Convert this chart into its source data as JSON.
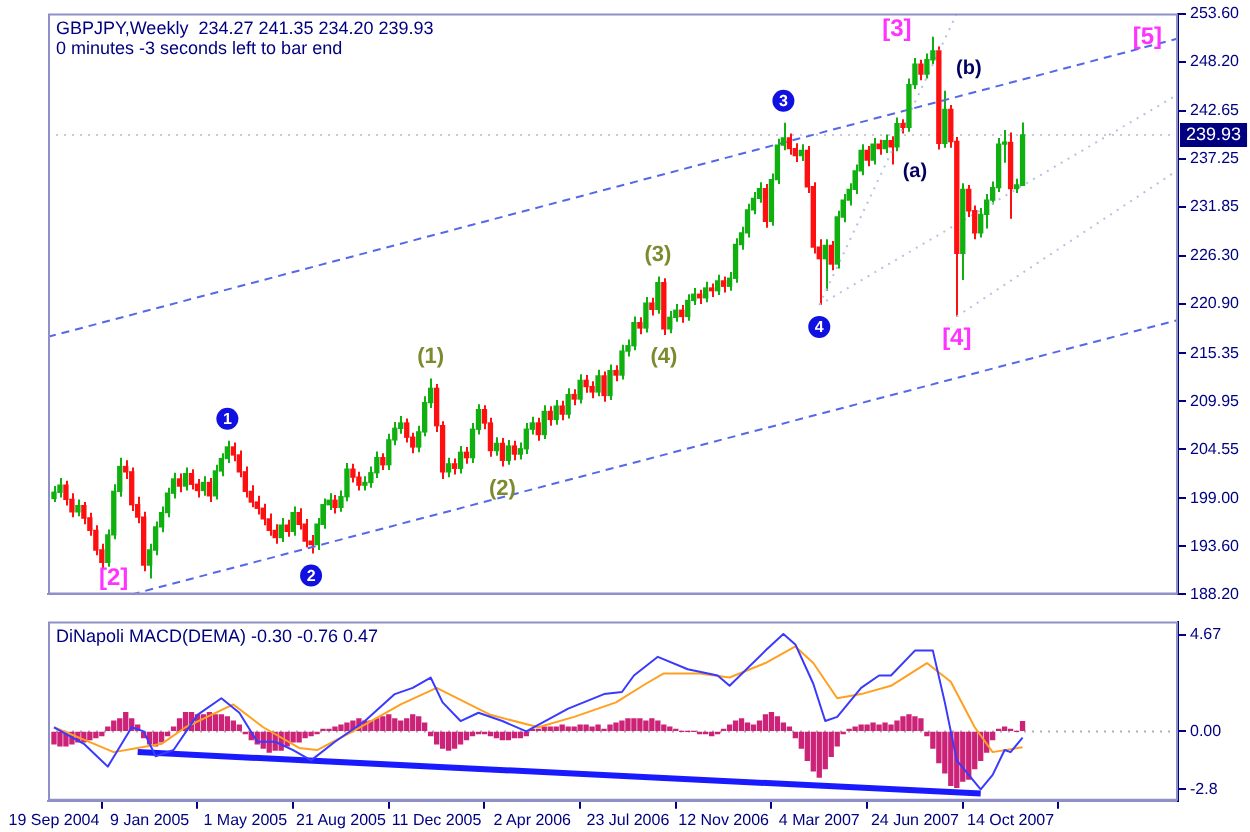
{
  "chart_data": [
    {
      "type": "candlestick",
      "title": "GBPJPY,Weekly  234.27 241.35 234.20 239.93",
      "subtitle": "0 minutes -3 seconds left to bar end",
      "x": [
        "2004-09-19",
        "2004-09-26",
        "2004-10-03",
        "2004-10-10",
        "2004-10-17",
        "2004-10-24",
        "2004-10-31",
        "2004-11-07",
        "2004-11-14",
        "2004-11-21",
        "2004-11-28",
        "2004-12-05",
        "2004-12-12",
        "2004-12-19",
        "2004-12-26",
        "2005-01-02",
        "2005-01-09",
        "2005-01-16",
        "2005-01-23",
        "2005-01-30",
        "2005-02-06",
        "2005-02-13",
        "2005-02-20",
        "2005-02-27",
        "2005-03-06",
        "2005-03-13",
        "2005-03-20",
        "2005-03-27",
        "2005-04-03",
        "2005-04-10",
        "2005-04-17",
        "2005-04-24",
        "2005-05-01",
        "2005-05-08",
        "2005-05-15",
        "2005-05-22",
        "2005-05-29",
        "2005-06-05",
        "2005-06-12",
        "2005-06-19",
        "2005-06-26",
        "2005-07-03",
        "2005-07-10",
        "2005-07-17",
        "2005-07-24",
        "2005-07-31",
        "2005-08-07",
        "2005-08-14",
        "2005-08-21",
        "2005-08-28",
        "2005-09-04",
        "2005-09-11",
        "2005-09-18",
        "2005-09-25",
        "2005-10-02",
        "2005-10-09",
        "2005-10-16",
        "2005-10-23",
        "2005-10-30",
        "2005-11-06",
        "2005-11-13",
        "2005-11-20",
        "2005-11-27",
        "2005-12-04",
        "2005-12-11",
        "2005-12-18",
        "2005-12-25",
        "2006-01-01",
        "2006-01-08",
        "2006-01-15",
        "2006-01-22",
        "2006-01-29",
        "2006-02-05",
        "2006-02-12",
        "2006-02-19",
        "2006-02-26",
        "2006-03-05",
        "2006-03-12",
        "2006-03-19",
        "2006-03-26",
        "2006-04-02",
        "2006-04-09",
        "2006-04-16",
        "2006-04-23",
        "2006-04-30",
        "2006-05-07",
        "2006-05-14",
        "2006-05-21",
        "2006-05-28",
        "2006-06-04",
        "2006-06-11",
        "2006-06-18",
        "2006-06-25",
        "2006-07-02",
        "2006-07-09",
        "2006-07-16",
        "2006-07-23",
        "2006-07-30",
        "2006-08-06",
        "2006-08-13",
        "2006-08-20",
        "2006-08-27",
        "2006-09-03",
        "2006-09-10",
        "2006-09-17",
        "2006-09-24",
        "2006-10-01",
        "2006-10-08",
        "2006-10-15",
        "2006-10-22",
        "2006-10-29",
        "2006-11-05",
        "2006-11-12",
        "2006-11-19",
        "2006-11-26",
        "2006-12-03",
        "2006-12-10",
        "2006-12-17",
        "2006-12-24",
        "2006-12-31",
        "2007-01-07",
        "2007-01-14",
        "2007-01-21",
        "2007-01-28",
        "2007-02-04",
        "2007-02-11",
        "2007-02-18",
        "2007-02-25",
        "2007-03-04",
        "2007-03-11",
        "2007-03-18",
        "2007-03-25",
        "2007-04-01",
        "2007-04-08",
        "2007-04-15",
        "2007-04-22",
        "2007-04-29",
        "2007-05-06",
        "2007-05-13",
        "2007-05-20",
        "2007-05-27",
        "2007-06-03",
        "2007-06-10",
        "2007-06-17",
        "2007-06-24",
        "2007-07-01",
        "2007-07-08",
        "2007-07-15",
        "2007-07-22",
        "2007-07-29",
        "2007-08-05",
        "2007-08-12",
        "2007-08-19",
        "2007-08-26",
        "2007-09-02",
        "2007-09-09",
        "2007-09-16",
        "2007-09-23",
        "2007-09-30",
        "2007-10-07",
        "2007-10-14",
        "2007-10-21",
        "2007-10-28"
      ],
      "ohlc": [
        [
          199.0,
          200.4,
          198.6,
          199.7
        ],
        [
          199.7,
          201.3,
          199.1,
          200.5
        ],
        [
          200.5,
          201.0,
          198.2,
          198.9
        ],
        [
          198.9,
          199.6,
          196.9,
          197.5
        ],
        [
          197.5,
          198.9,
          197.0,
          198.2
        ],
        [
          198.2,
          198.6,
          196.1,
          196.8
        ],
        [
          196.8,
          197.4,
          194.8,
          195.4
        ],
        [
          195.4,
          196.0,
          192.6,
          193.2
        ],
        [
          193.2,
          193.9,
          191.1,
          191.8
        ],
        [
          191.8,
          195.5,
          191.3,
          194.9
        ],
        [
          194.9,
          200.6,
          194.4,
          199.8
        ],
        [
          199.8,
          203.6,
          199.2,
          202.6
        ],
        [
          202.6,
          203.3,
          201.2,
          202.0
        ],
        [
          202.0,
          202.5,
          197.6,
          198.3
        ],
        [
          198.3,
          199.2,
          196.2,
          196.9
        ],
        [
          196.9,
          197.5,
          190.8,
          191.5
        ],
        [
          191.5,
          193.9,
          190.0,
          193.2
        ],
        [
          193.2,
          196.4,
          192.6,
          195.8
        ],
        [
          195.8,
          198.1,
          195.2,
          197.4
        ],
        [
          197.4,
          200.2,
          196.9,
          199.6
        ],
        [
          199.6,
          201.9,
          199.0,
          201.2
        ],
        [
          201.2,
          201.8,
          199.7,
          200.4
        ],
        [
          200.4,
          202.5,
          199.9,
          201.8
        ],
        [
          201.8,
          202.3,
          200.0,
          200.6
        ],
        [
          200.6,
          201.2,
          199.1,
          199.9
        ],
        [
          199.9,
          201.5,
          199.3,
          200.8
        ],
        [
          200.8,
          201.3,
          198.6,
          199.3
        ],
        [
          199.3,
          202.8,
          198.9,
          202.1
        ],
        [
          202.1,
          204.1,
          201.5,
          203.5
        ],
        [
          203.5,
          205.5,
          203.0,
          204.8
        ],
        [
          204.8,
          205.3,
          203.2,
          203.9
        ],
        [
          203.9,
          204.4,
          201.4,
          202.0
        ],
        [
          202.0,
          202.6,
          199.1,
          199.8
        ],
        [
          199.8,
          200.5,
          198.0,
          198.6
        ],
        [
          198.6,
          199.3,
          197.2,
          197.9
        ],
        [
          197.9,
          198.4,
          196.0,
          196.7
        ],
        [
          196.7,
          197.3,
          194.8,
          195.4
        ],
        [
          195.4,
          196.1,
          193.9,
          194.6
        ],
        [
          194.6,
          196.8,
          194.1,
          196.0
        ],
        [
          196.0,
          196.6,
          194.7,
          195.3
        ],
        [
          195.3,
          198.1,
          194.8,
          197.4
        ],
        [
          197.4,
          197.9,
          195.5,
          196.1
        ],
        [
          196.1,
          196.7,
          193.5,
          194.2
        ],
        [
          194.2,
          194.9,
          192.8,
          193.8
        ],
        [
          193.8,
          196.8,
          193.2,
          196.1
        ],
        [
          196.1,
          199.0,
          195.6,
          198.3
        ],
        [
          198.3,
          199.6,
          197.7,
          198.8
        ],
        [
          198.8,
          199.4,
          197.3,
          198.0
        ],
        [
          198.0,
          199.9,
          197.5,
          199.2
        ],
        [
          199.2,
          203.0,
          198.7,
          202.3
        ],
        [
          202.3,
          202.9,
          200.8,
          201.4
        ],
        [
          201.4,
          202.0,
          199.9,
          200.5
        ],
        [
          200.5,
          201.5,
          199.9,
          200.8
        ],
        [
          200.8,
          202.6,
          200.2,
          201.9
        ],
        [
          201.9,
          204.3,
          201.3,
          203.6
        ],
        [
          203.6,
          204.1,
          202.2,
          202.8
        ],
        [
          202.8,
          206.3,
          202.2,
          205.6
        ],
        [
          205.6,
          207.6,
          205.0,
          206.9
        ],
        [
          206.9,
          208.3,
          206.3,
          207.5
        ],
        [
          207.5,
          208.0,
          205.3,
          205.9
        ],
        [
          205.9,
          206.4,
          204.1,
          204.8
        ],
        [
          204.8,
          207.2,
          204.2,
          206.5
        ],
        [
          206.5,
          210.5,
          206.0,
          209.8
        ],
        [
          209.8,
          212.5,
          209.2,
          211.4
        ],
        [
          211.4,
          211.9,
          206.5,
          207.2
        ],
        [
          207.2,
          207.7,
          201.2,
          202.0
        ],
        [
          202.0,
          203.6,
          201.4,
          202.9
        ],
        [
          202.9,
          203.5,
          201.7,
          202.4
        ],
        [
          202.4,
          204.9,
          201.8,
          204.2
        ],
        [
          204.2,
          204.8,
          202.9,
          203.6
        ],
        [
          203.6,
          207.5,
          203.0,
          206.8
        ],
        [
          206.8,
          209.6,
          206.2,
          209.0
        ],
        [
          209.0,
          209.5,
          206.8,
          207.5
        ],
        [
          207.5,
          208.1,
          203.7,
          204.4
        ],
        [
          204.4,
          205.9,
          203.8,
          205.2
        ],
        [
          205.2,
          205.8,
          202.6,
          203.3
        ],
        [
          203.3,
          205.6,
          202.8,
          204.9
        ],
        [
          204.9,
          205.5,
          203.3,
          204.0
        ],
        [
          204.0,
          205.3,
          203.4,
          204.6
        ],
        [
          204.6,
          207.5,
          204.0,
          206.8
        ],
        [
          206.8,
          208.2,
          206.2,
          207.5
        ],
        [
          207.5,
          208.1,
          205.5,
          206.2
        ],
        [
          206.2,
          209.5,
          205.7,
          208.8
        ],
        [
          208.8,
          209.4,
          207.2,
          207.9
        ],
        [
          207.9,
          210.1,
          207.3,
          209.4
        ],
        [
          209.4,
          210.0,
          207.8,
          208.5
        ],
        [
          208.5,
          211.4,
          208.0,
          210.7
        ],
        [
          210.7,
          211.3,
          209.5,
          210.2
        ],
        [
          210.2,
          213.0,
          209.7,
          212.3
        ],
        [
          212.3,
          212.9,
          210.9,
          211.6
        ],
        [
          211.6,
          212.2,
          210.3,
          211.0
        ],
        [
          211.0,
          213.5,
          210.5,
          212.8
        ],
        [
          212.8,
          213.3,
          209.9,
          210.6
        ],
        [
          210.6,
          214.1,
          210.1,
          213.4
        ],
        [
          213.4,
          214.0,
          212.2,
          212.9
        ],
        [
          212.9,
          216.3,
          212.4,
          215.6
        ],
        [
          215.6,
          216.9,
          215.0,
          216.2
        ],
        [
          216.2,
          219.5,
          215.7,
          218.8
        ],
        [
          218.8,
          219.4,
          217.5,
          218.2
        ],
        [
          218.2,
          221.7,
          217.7,
          221.0
        ],
        [
          221.0,
          221.6,
          219.6,
          220.3
        ],
        [
          220.3,
          224.0,
          219.8,
          223.3
        ],
        [
          223.3,
          223.8,
          217.4,
          218.1
        ],
        [
          218.1,
          220.1,
          217.6,
          219.4
        ],
        [
          219.4,
          220.9,
          218.9,
          220.2
        ],
        [
          220.2,
          220.8,
          218.8,
          219.5
        ],
        [
          219.5,
          222.0,
          219.0,
          221.3
        ],
        [
          221.3,
          222.7,
          220.8,
          222.0
        ],
        [
          222.0,
          222.5,
          220.9,
          221.6
        ],
        [
          221.6,
          223.4,
          221.1,
          222.7
        ],
        [
          222.7,
          223.2,
          221.7,
          222.4
        ],
        [
          222.4,
          224.2,
          221.9,
          223.5
        ],
        [
          223.5,
          224.0,
          222.2,
          222.9
        ],
        [
          222.9,
          224.5,
          222.4,
          223.8
        ],
        [
          223.8,
          228.3,
          223.3,
          227.6
        ],
        [
          227.6,
          229.6,
          227.0,
          228.9
        ],
        [
          228.9,
          232.2,
          228.4,
          231.5
        ],
        [
          231.5,
          233.5,
          231.0,
          232.8
        ],
        [
          232.8,
          234.6,
          232.3,
          233.9
        ],
        [
          233.9,
          234.4,
          229.5,
          230.2
        ],
        [
          230.2,
          235.6,
          229.7,
          234.9
        ],
        [
          234.9,
          239.5,
          234.4,
          238.8
        ],
        [
          238.8,
          241.3,
          238.2,
          239.6
        ],
        [
          239.6,
          240.1,
          237.7,
          238.4
        ],
        [
          238.4,
          239.0,
          236.9,
          237.6
        ],
        [
          237.6,
          238.9,
          237.0,
          238.2
        ],
        [
          238.2,
          238.7,
          233.4,
          234.1
        ],
        [
          234.1,
          234.6,
          226.6,
          227.3
        ],
        [
          227.3,
          228.2,
          220.8,
          226.0
        ],
        [
          226.0,
          228.2,
          222.4,
          227.5
        ],
        [
          227.5,
          228.0,
          224.7,
          225.4
        ],
        [
          225.4,
          231.4,
          224.9,
          230.7
        ],
        [
          230.7,
          233.3,
          230.1,
          232.6
        ],
        [
          232.6,
          234.5,
          232.0,
          233.8
        ],
        [
          233.8,
          236.6,
          233.3,
          235.9
        ],
        [
          235.9,
          238.9,
          235.4,
          238.2
        ],
        [
          238.2,
          238.7,
          236.4,
          237.1
        ],
        [
          237.1,
          239.6,
          236.6,
          238.9
        ],
        [
          238.9,
          239.4,
          237.7,
          238.4
        ],
        [
          238.4,
          240.0,
          237.9,
          239.3
        ],
        [
          239.3,
          239.8,
          236.6,
          238.6
        ],
        [
          238.6,
          241.9,
          238.1,
          241.2
        ],
        [
          241.2,
          241.7,
          240.1,
          240.8
        ],
        [
          240.8,
          246.3,
          240.3,
          245.6
        ],
        [
          245.6,
          248.6,
          245.1,
          247.9
        ],
        [
          247.9,
          248.4,
          246.1,
          246.8
        ],
        [
          246.8,
          249.1,
          246.3,
          248.4
        ],
        [
          248.4,
          251.0,
          247.9,
          249.4
        ],
        [
          249.4,
          249.9,
          238.3,
          239.0
        ],
        [
          239.0,
          244.9,
          238.5,
          242.8
        ],
        [
          242.8,
          243.3,
          238.5,
          239.2
        ],
        [
          239.2,
          239.7,
          219.5,
          226.6
        ],
        [
          226.6,
          234.5,
          223.6,
          233.8
        ],
        [
          233.8,
          234.3,
          230.7,
          231.4
        ],
        [
          231.4,
          232.0,
          228.2,
          228.9
        ],
        [
          228.9,
          231.7,
          228.4,
          231.0
        ],
        [
          231.0,
          233.3,
          229.4,
          232.6
        ],
        [
          232.6,
          234.7,
          232.1,
          234.0
        ],
        [
          234.0,
          239.6,
          233.5,
          238.9
        ],
        [
          238.9,
          240.5,
          236.8,
          239.1
        ],
        [
          239.1,
          240.2,
          230.5,
          233.9
        ],
        [
          233.9,
          235.0,
          233.4,
          234.3
        ],
        [
          234.27,
          241.35,
          234.2,
          239.93
        ]
      ],
      "series": [
        {
          "type": "line",
          "color": "#5468e8",
          "line_style": "dashed",
          "x": [
            "2004-09-12",
            "2008-04-27"
          ],
          "values": [
            217.2,
            250.8
          ]
        },
        {
          "type": "line",
          "color": "#5468e8",
          "line_style": "dashed",
          "x": [
            "2004-12-19",
            "2008-04-27"
          ],
          "values": [
            188.2,
            219.1
          ]
        },
        {
          "type": "line",
          "color": "#b8c0e0",
          "line_style": "dotted",
          "x": [
            "2007-03-04",
            "2008-04-27"
          ],
          "values": [
            220.8,
            244.5
          ]
        },
        {
          "type": "line",
          "color": "#b8c0e0",
          "line_style": "dotted",
          "x": [
            "2007-08-12",
            "2008-04-27"
          ],
          "values": [
            219.5,
            236.0
          ]
        },
        {
          "type": "line",
          "color": "#b8c0e0",
          "line_style": "dotted",
          "x": [
            "2007-03-04",
            "2007-08-12"
          ],
          "values": [
            220.8,
            253.6
          ]
        }
      ],
      "xlim": [
        "2004-09-12",
        "2008-04-27"
      ],
      "ylim": [
        188.2,
        253.6
      ],
      "yticks": [
        {
          "value": 253.6,
          "label": "253.60"
        },
        {
          "value": 248.2,
          "label": "248.20"
        },
        {
          "value": 242.65,
          "label": "242.65"
        },
        {
          "value": 237.25,
          "label": "237.25"
        },
        {
          "value": 231.85,
          "label": "231.85"
        },
        {
          "value": 226.3,
          "label": "226.30"
        },
        {
          "value": 220.9,
          "label": "220.90"
        },
        {
          "value": 215.35,
          "label": "215.35"
        },
        {
          "value": 209.95,
          "label": "209.95"
        },
        {
          "value": 204.55,
          "label": "204.55"
        },
        {
          "value": 199.0,
          "label": "199.00"
        },
        {
          "value": 193.6,
          "label": "193.60"
        },
        {
          "value": 188.2,
          "label": "188.20"
        }
      ],
      "ref_lines": [
        {
          "axis": "y",
          "value": 239.93,
          "label": "239.93",
          "color": "#c8c8d8",
          "line_style": "dotted"
        }
      ],
      "annotations": [
        {
          "text": "1",
          "x": "2005-04-10",
          "y": 205.5
        },
        {
          "text": "2",
          "x": "2005-07-17",
          "y": 192.8
        },
        {
          "text": "3",
          "x": "2007-01-21",
          "y": 241.3
        },
        {
          "text": "4",
          "x": "2007-03-04",
          "y": 220.8
        },
        {
          "text": "(1)",
          "x": "2005-12-04",
          "y": 212.5
        },
        {
          "text": "(2)",
          "x": "2006-02-26",
          "y": 202.6
        },
        {
          "text": "(3)",
          "x": "2006-08-27",
          "y": 224.0
        },
        {
          "text": "(4)",
          "x": "2006-09-03",
          "y": 217.4
        },
        {
          "text": "[2]",
          "x": "2005-01-09",
          "y": 190.0
        },
        {
          "text": "[3]",
          "x": "2007-07-15",
          "y": 251.0
        },
        {
          "text": "[4]",
          "x": "2007-08-12",
          "y": 219.5
        },
        {
          "text": "(a)",
          "x": "2007-07-22",
          "y": 238.3
        },
        {
          "text": "(b)",
          "x": "2007-07-29",
          "y": 244.9
        },
        "[5]"
      ],
      "tick_labels": "y"
    },
    {
      "type": "bar",
      "title": "DiNapoli MACD(DEMA) -0.30 -0.76 0.47",
      "x": [
        "2004-09-19",
        "2004-09-26",
        "2004-10-03",
        "2004-10-10",
        "2004-10-17",
        "2004-10-24",
        "2004-10-31",
        "2004-11-07",
        "2004-11-14",
        "2004-11-21",
        "2004-11-28",
        "2004-12-05",
        "2004-12-12",
        "2004-12-19",
        "2004-12-26",
        "2005-01-02",
        "2005-01-09",
        "2005-01-16",
        "2005-01-23",
        "2005-01-30",
        "2005-02-06",
        "2005-02-13",
        "2005-02-20",
        "2005-02-27",
        "2005-03-06",
        "2005-03-13",
        "2005-03-20",
        "2005-03-27",
        "2005-04-03",
        "2005-04-10",
        "2005-04-17",
        "2005-04-24",
        "2005-05-01",
        "2005-05-08",
        "2005-05-15",
        "2005-05-22",
        "2005-05-29",
        "2005-06-05",
        "2005-06-12",
        "2005-06-19",
        "2005-06-26",
        "2005-07-03",
        "2005-07-10",
        "2005-07-17",
        "2005-07-24",
        "2005-07-31",
        "2005-08-07",
        "2005-08-14",
        "2005-08-21",
        "2005-08-28",
        "2005-09-04",
        "2005-09-11",
        "2005-09-18",
        "2005-09-25",
        "2005-10-02",
        "2005-10-09",
        "2005-10-16",
        "2005-10-23",
        "2005-10-30",
        "2005-11-06",
        "2005-11-13",
        "2005-11-20",
        "2005-11-27",
        "2005-12-04",
        "2005-12-11",
        "2005-12-18",
        "2005-12-25",
        "2006-01-01",
        "2006-01-08",
        "2006-01-15",
        "2006-01-22",
        "2006-01-29",
        "2006-02-05",
        "2006-02-12",
        "2006-02-19",
        "2006-02-26",
        "2006-03-05",
        "2006-03-12",
        "2006-03-19",
        "2006-03-26",
        "2006-04-02",
        "2006-04-09",
        "2006-04-16",
        "2006-04-23",
        "2006-04-30",
        "2006-05-07",
        "2006-05-14",
        "2006-05-21",
        "2006-05-28",
        "2006-06-04",
        "2006-06-11",
        "2006-06-18",
        "2006-06-25",
        "2006-07-02",
        "2006-07-09",
        "2006-07-16",
        "2006-07-23",
        "2006-07-30",
        "2006-08-06",
        "2006-08-13",
        "2006-08-20",
        "2006-08-27",
        "2006-09-03",
        "2006-09-10",
        "2006-09-17",
        "2006-09-24",
        "2006-10-01",
        "2006-10-08",
        "2006-10-15",
        "2006-10-22",
        "2006-10-29",
        "2006-11-05",
        "2006-11-12",
        "2006-11-19",
        "2006-11-26",
        "2006-12-03",
        "2006-12-10",
        "2006-12-17",
        "2006-12-24",
        "2006-12-31",
        "2007-01-07",
        "2007-01-14",
        "2007-01-21",
        "2007-01-28",
        "2007-02-04",
        "2007-02-11",
        "2007-02-18",
        "2007-02-25",
        "2007-03-04",
        "2007-03-11",
        "2007-03-18",
        "2007-03-25",
        "2007-04-01",
        "2007-04-08",
        "2007-04-15",
        "2007-04-22",
        "2007-04-29",
        "2007-05-06",
        "2007-05-13",
        "2007-05-20",
        "2007-05-27",
        "2007-06-03",
        "2007-06-10",
        "2007-06-17",
        "2007-06-24",
        "2007-07-01",
        "2007-07-08",
        "2007-07-15",
        "2007-07-22",
        "2007-07-29",
        "2007-08-05",
        "2007-08-12",
        "2007-08-19",
        "2007-08-26",
        "2007-09-02",
        "2007-09-09",
        "2007-09-16",
        "2007-09-23",
        "2007-09-30",
        "2007-10-07",
        "2007-10-14",
        "2007-10-21",
        "2007-10-28"
      ],
      "series": [
        {
          "type": "bar",
          "color": "#cc2277",
          "values": [
            -0.6,
            -0.7,
            -0.7,
            -0.6,
            -0.5,
            -0.5,
            -0.4,
            -0.3,
            -0.2,
            0.2,
            0.5,
            0.6,
            0.9,
            0.6,
            0.3,
            -0.3,
            -0.6,
            -0.7,
            -0.5,
            -0.2,
            0.2,
            0.6,
            0.9,
            0.9,
            0.8,
            0.8,
            0.9,
            0.8,
            0.8,
            0.7,
            0.5,
            0.3,
            -0.1,
            -0.4,
            -0.6,
            -0.8,
            -1.0,
            -0.9,
            -0.9,
            -0.7,
            -0.5,
            -0.5,
            -0.3,
            -0.2,
            -0.1,
            0.1,
            0.1,
            0.2,
            0.3,
            0.4,
            0.5,
            0.6,
            0.5,
            0.5,
            0.6,
            0.7,
            0.8,
            0.6,
            0.5,
            0.6,
            0.8,
            0.7,
            0.4,
            -0.2,
            -0.6,
            -0.8,
            -0.9,
            -0.8,
            -0.6,
            -0.4,
            -0.2,
            -0.1,
            -0.1,
            -0.2,
            -0.3,
            -0.4,
            -0.4,
            -0.3,
            -0.3,
            -0.2,
            0.1,
            0.1,
            0.2,
            0.2,
            0.2,
            0.3,
            0.2,
            0.2,
            0.3,
            0.3,
            0.2,
            0.3,
            0.1,
            0.3,
            0.4,
            0.5,
            0.6,
            0.6,
            0.6,
            0.5,
            0.6,
            0.5,
            0.3,
            0.2,
            0.1,
            0.0,
            0.0,
            0.0,
            -0.1,
            -0.1,
            -0.2,
            -0.1,
            0.1,
            0.3,
            0.5,
            0.6,
            0.4,
            0.3,
            0.5,
            0.8,
            0.9,
            0.7,
            0.4,
            0.2,
            -0.3,
            -0.8,
            -1.4,
            -1.9,
            -2.2,
            -1.8,
            -1.2,
            -0.7,
            -0.1,
            0.1,
            0.2,
            0.3,
            0.3,
            0.4,
            0.3,
            0.4,
            0.3,
            0.5,
            0.7,
            0.8,
            0.7,
            0.6,
            -0.2,
            -0.8,
            -1.5,
            -2.0,
            -2.6,
            -2.7,
            -2.4,
            -2.3,
            -1.8,
            -1.4,
            -1.0,
            -0.4,
            0.1,
            0.2,
            0.1,
            0.0,
            0.47
          ]
        },
        {
          "type": "line",
          "color": "#3a3aff",
          "x": [
            "2004-09-19",
            "2004-10-24",
            "2004-11-21",
            "2004-12-19",
            "2005-01-02",
            "2005-01-16",
            "2005-02-06",
            "2005-03-06",
            "2005-04-03",
            "2005-04-24",
            "2005-05-15",
            "2005-06-05",
            "2005-06-26",
            "2005-07-17",
            "2005-08-14",
            "2005-09-18",
            "2005-10-23",
            "2005-11-13",
            "2005-12-04",
            "2005-12-18",
            "2006-01-08",
            "2006-01-29",
            "2006-02-26",
            "2006-03-26",
            "2006-05-14",
            "2006-06-25",
            "2006-07-16",
            "2006-07-30",
            "2006-08-27",
            "2006-10-01",
            "2006-11-05",
            "2006-11-19",
            "2006-12-31",
            "2007-01-21",
            "2007-02-04",
            "2007-02-25",
            "2007-03-11",
            "2007-03-25",
            "2007-04-22",
            "2007-05-13",
            "2007-05-27",
            "2007-06-24",
            "2007-07-15",
            "2007-07-29",
            "2007-08-12",
            "2007-09-09",
            "2007-09-23",
            "2007-10-07",
            "2007-10-14",
            "2007-10-28"
          ],
          "values": [
            0.2,
            -0.6,
            -1.7,
            0.2,
            0.0,
            -1.2,
            -0.9,
            0.8,
            1.6,
            0.9,
            -0.5,
            -0.5,
            -0.9,
            -1.4,
            -0.5,
            0.5,
            1.8,
            2.1,
            2.6,
            1.4,
            0.5,
            0.9,
            0.5,
            0.0,
            1.1,
            1.8,
            1.9,
            2.7,
            3.6,
            3.0,
            2.7,
            2.2,
            3.9,
            4.7,
            4.2,
            2.3,
            0.5,
            0.7,
            2.1,
            2.7,
            2.7,
            3.9,
            3.9,
            1.4,
            -1.4,
            -2.8,
            -2.1,
            -0.9,
            -1.0,
            -0.3
          ]
        },
        {
          "type": "line",
          "color": "#ffa020",
          "x": [
            "2004-09-19",
            "2004-10-24",
            "2004-11-28",
            "2004-12-26",
            "2005-01-23",
            "2005-02-20",
            "2005-04-17",
            "2005-05-22",
            "2005-07-03",
            "2005-07-24",
            "2005-09-04",
            "2005-10-30",
            "2005-12-11",
            "2006-02-12",
            "2006-04-09",
            "2006-05-21",
            "2006-07-09",
            "2006-08-13",
            "2006-09-03",
            "2006-10-15",
            "2006-11-19",
            "2006-12-31",
            "2007-02-04",
            "2007-02-25",
            "2007-03-25",
            "2007-04-22",
            "2007-05-27",
            "2007-07-08",
            "2007-08-05",
            "2007-09-02",
            "2007-09-23",
            "2007-10-28"
          ],
          "values": [
            0.2,
            -0.4,
            -1.0,
            -0.8,
            -0.6,
            0.2,
            1.3,
            0.2,
            -0.8,
            -0.9,
            0.0,
            1.3,
            2.1,
            0.8,
            0.2,
            0.7,
            1.4,
            2.3,
            2.8,
            2.8,
            2.6,
            3.3,
            4.1,
            3.3,
            1.6,
            1.8,
            2.2,
            3.3,
            2.4,
            0.2,
            -1.0,
            -0.76
          ]
        },
        {
          "type": "line",
          "color": "#1a1aff",
          "line_style": "solid",
          "x": [
            "2004-12-26",
            "2007-09-09"
          ],
          "values": [
            -1.0,
            -3.0
          ]
        }
      ],
      "xlim": [
        "2004-09-12",
        "2008-04-27"
      ],
      "xticks": [
        {
          "value": "2004-09-19",
          "label": "19 Sep 2004"
        },
        {
          "value": "2005-01-09",
          "label": "9 Jan 2005"
        },
        {
          "value": "2005-05-01",
          "label": "1 May 2005"
        },
        {
          "value": "2005-08-21",
          "label": "21 Aug 2005"
        },
        {
          "value": "2005-12-11",
          "label": "11 Dec 2005"
        },
        {
          "value": "2006-04-02",
          "label": "2 Apr 2006"
        },
        {
          "value": "2006-07-23",
          "label": "23 Jul 2006"
        },
        {
          "value": "2006-11-12",
          "label": "12 Nov 2006"
        },
        {
          "value": "2007-03-04",
          "label": "4 Mar 2007"
        },
        {
          "value": "2007-06-24",
          "label": "24 Jun 2007"
        },
        {
          "value": "2007-10-14",
          "label": "14 Oct 2007"
        }
      ],
      "ylim": [
        -3.35,
        5.3
      ],
      "yticks": [
        4.67,
        {
          "value": 0,
          "label": "0.00"
        },
        -2.8
      ],
      "ref_lines": [
        {
          "axis": "y",
          "value": 0,
          "color": "#b0b0b0",
          "line_style": "dotted"
        }
      ]
    }
  ]
}
